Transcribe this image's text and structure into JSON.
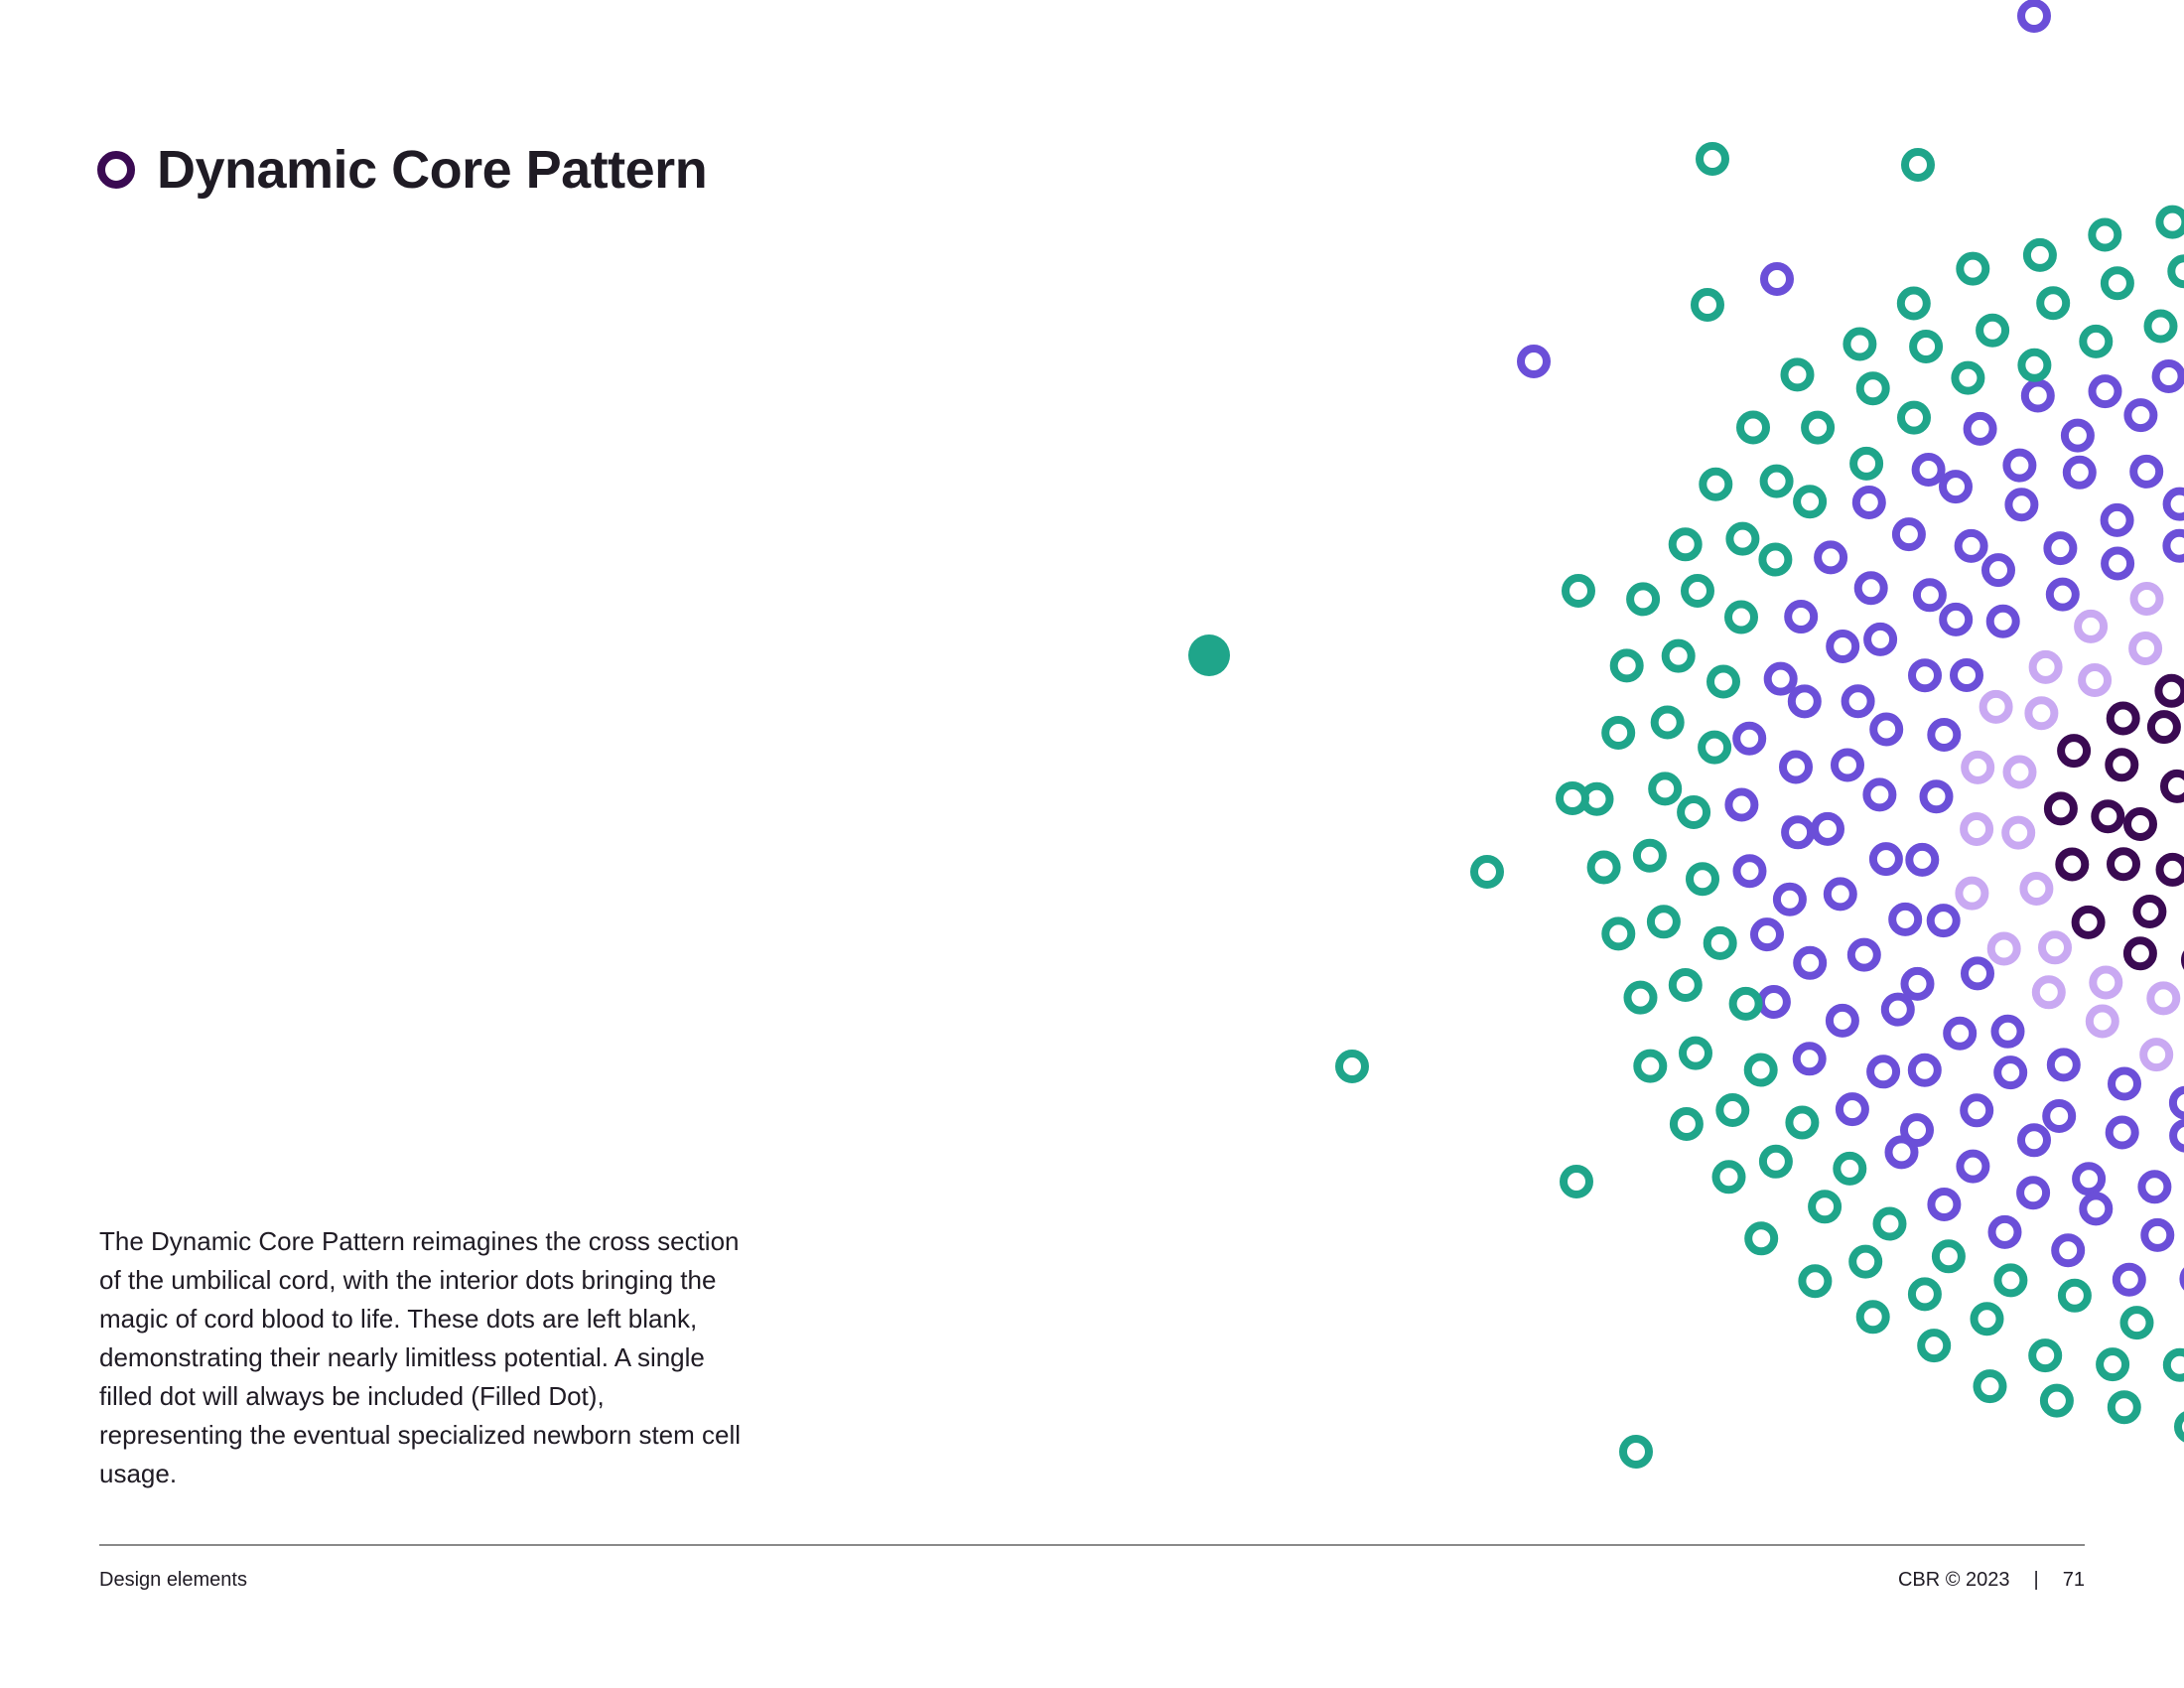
{
  "header": {
    "title": "Dynamic Core Pattern",
    "bullet_icon": "ring-bullet-icon"
  },
  "body": {
    "paragraph": "The Dynamic Core Pattern reimagines the cross section of the umbilical cord, with the interior dots bringing the magic of cord blood to life. These dots are left blank, demonstrating their nearly limitless potential. A single filled dot will always be included (Filled Dot), representing the eventual specialized newborn stem cell usage."
  },
  "footer": {
    "section": "Design elements",
    "copyright": "CBR © 2023",
    "separator": "|",
    "page_number": "71"
  },
  "colors": {
    "teal": "#1fa58a",
    "purple": "#6b4fd8",
    "lavender": "#c9a9f2",
    "plum": "#3a0a52",
    "text": "#1f1b24"
  }
}
